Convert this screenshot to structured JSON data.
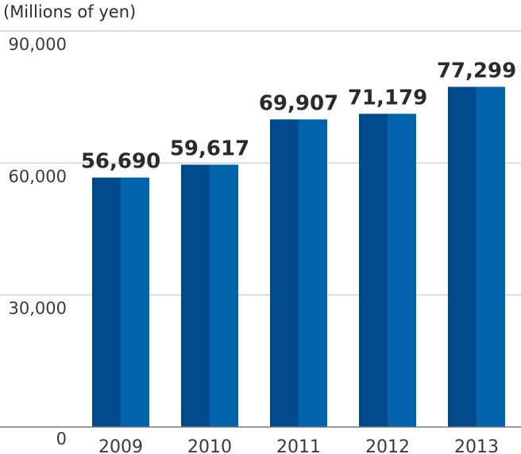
{
  "chart_data": {
    "type": "bar",
    "unit_label": "(Millions of yen)",
    "categories": [
      "2009",
      "2010",
      "2011",
      "2012",
      "2013"
    ],
    "values": [
      56690,
      59617,
      69907,
      71179,
      77299
    ],
    "value_labels": [
      "56,690",
      "59,617",
      "69,907",
      "71,179",
      "77,299"
    ],
    "y_ticks": [
      0,
      30000,
      60000,
      90000
    ],
    "y_tick_labels": [
      "0",
      "30,000",
      "60,000",
      "90,000"
    ],
    "ylim": [
      0,
      90000
    ],
    "grid": true,
    "colors": {
      "bar_dark": "#004a8c",
      "bar_light": "#0062a8",
      "grid": "#c8c8c8",
      "axis": "#7a7a7a"
    }
  }
}
